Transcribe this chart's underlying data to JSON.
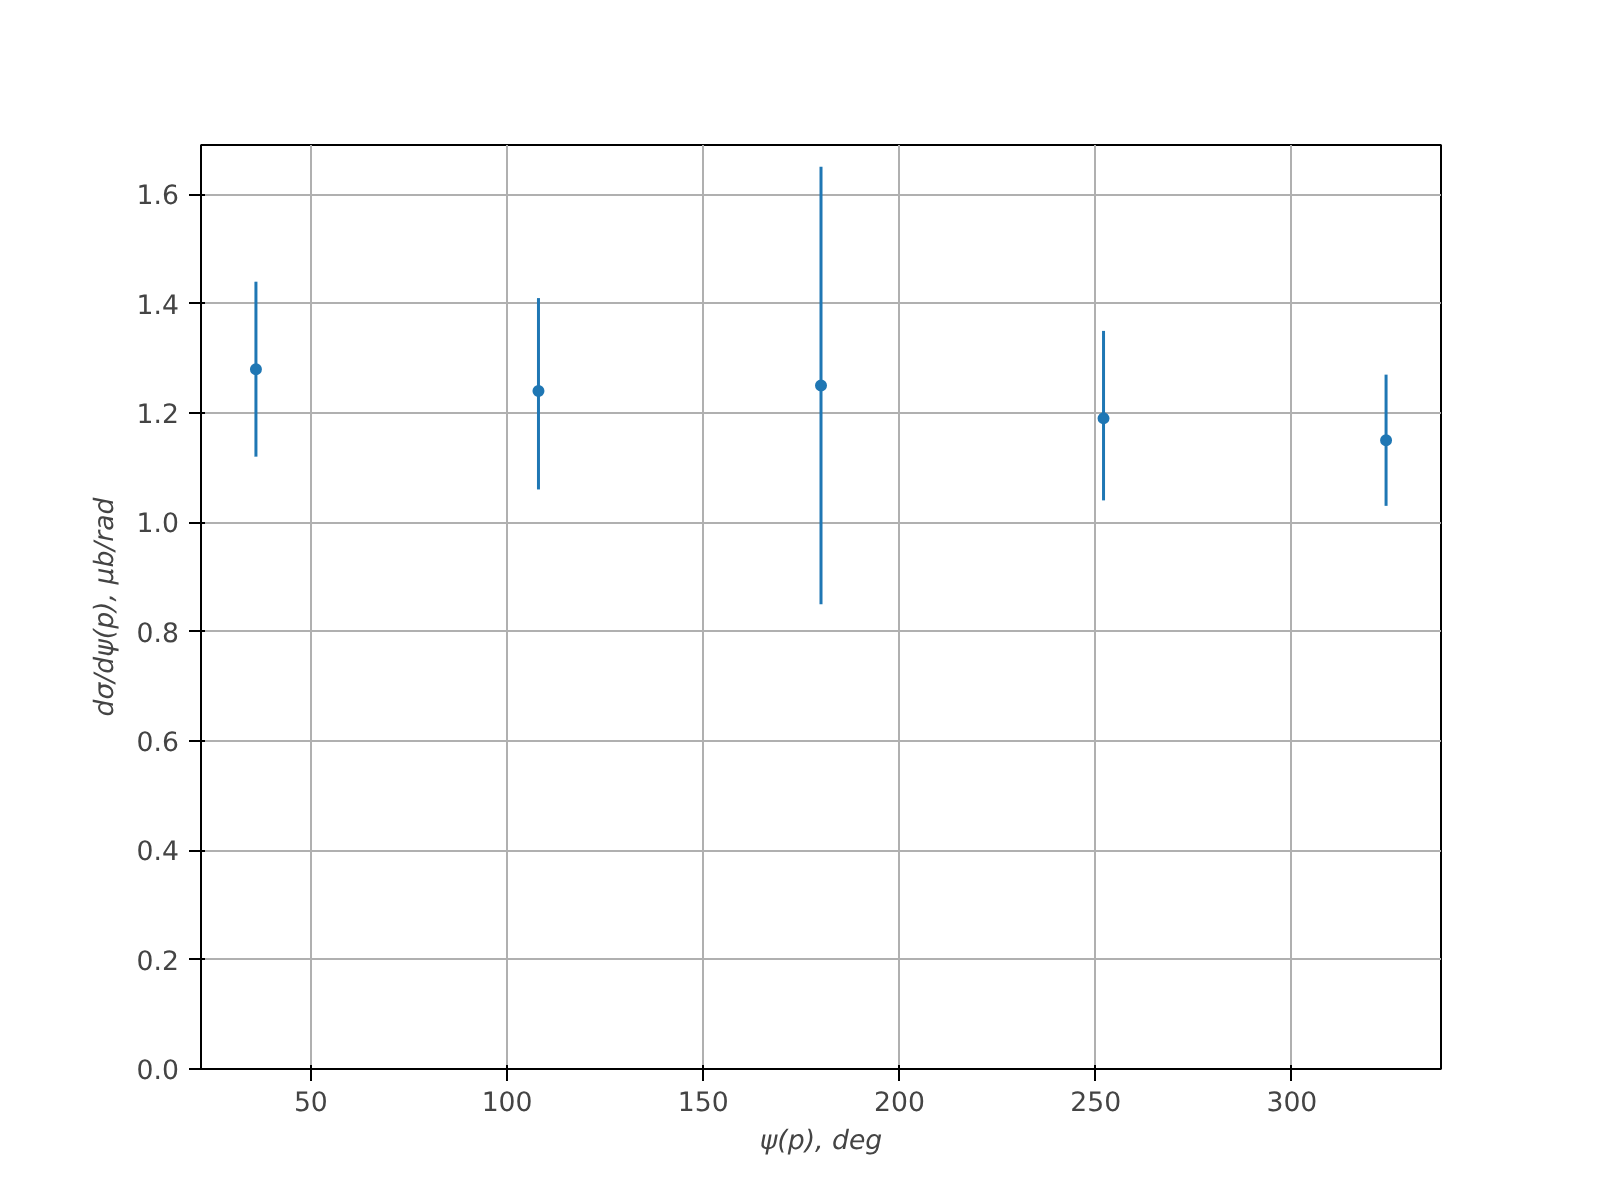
{
  "chart_data": {
    "type": "scatter",
    "xlabel": "ψ(p), deg",
    "ylabel": "dσ/dψ(p), μb/rad",
    "x": [
      36,
      108,
      180,
      252,
      324
    ],
    "series": [
      {
        "color": "#1f77b4",
        "values": [
          1.28,
          1.24,
          1.25,
          1.19,
          1.15
        ],
        "errors": [
          [
            1.12,
            1.44
          ],
          [
            1.06,
            1.41
          ],
          [
            0.85,
            1.65
          ],
          [
            1.04,
            1.35
          ],
          [
            1.03,
            1.27
          ]
        ]
      }
    ],
    "xlim": [
      22,
      338
    ],
    "xticks": [
      50,
      100,
      150,
      200,
      250,
      300
    ],
    "ylim": [
      0,
      1.69
    ],
    "yticks": [
      {
        "value": 0,
        "label": "0.0"
      },
      0.2,
      0.4,
      0.6,
      0.8,
      {
        "value": 1,
        "label": "1.0"
      },
      1.2,
      1.4,
      1.6
    ],
    "grid": true,
    "marker": "circle"
  }
}
